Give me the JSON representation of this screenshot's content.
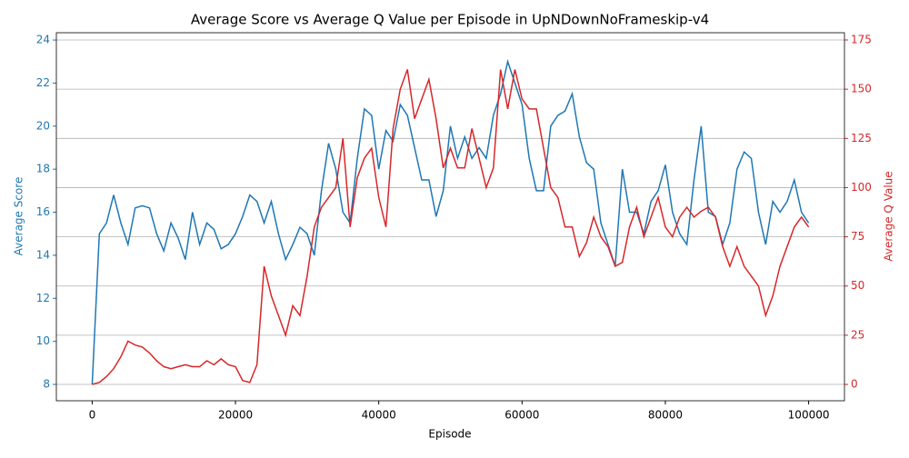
{
  "chart_data": {
    "type": "line",
    "title": "Average Score vs Average Q Value per Episode in UpNDownNoFrameskip-v4",
    "xlabel": "Episode",
    "ylabel": "Average Score",
    "y2label": "Average Q Value",
    "x": [
      0,
      1000,
      2000,
      3000,
      4000,
      5000,
      6000,
      7000,
      8000,
      9000,
      10000,
      11000,
      12000,
      13000,
      14000,
      15000,
      16000,
      17000,
      18000,
      19000,
      20000,
      21000,
      22000,
      23000,
      24000,
      25000,
      26000,
      27000,
      28000,
      29000,
      30000,
      31000,
      32000,
      33000,
      34000,
      35000,
      36000,
      37000,
      38000,
      39000,
      40000,
      41000,
      42000,
      43000,
      44000,
      45000,
      46000,
      47000,
      48000,
      49000,
      50000,
      51000,
      52000,
      53000,
      54000,
      55000,
      56000,
      57000,
      58000,
      59000,
      60000,
      61000,
      62000,
      63000,
      64000,
      65000,
      66000,
      67000,
      68000,
      69000,
      70000,
      71000,
      72000,
      73000,
      74000,
      75000,
      76000,
      77000,
      78000,
      79000,
      80000,
      81000,
      82000,
      83000,
      84000,
      85000,
      86000,
      87000,
      88000,
      89000,
      90000,
      91000,
      92000,
      93000,
      94000,
      95000,
      96000,
      97000,
      98000,
      99000,
      100000
    ],
    "series": [
      {
        "name": "Average Score",
        "color": "#1f77b4",
        "axis": "y",
        "values": [
          8,
          15,
          15.5,
          16.8,
          15.5,
          14.5,
          16.2,
          16.3,
          16.2,
          15,
          14.2,
          15.5,
          14.8,
          13.8,
          16,
          14.5,
          15.5,
          15.2,
          14.3,
          14.5,
          15,
          15.8,
          16.8,
          16.5,
          15.5,
          16.5,
          15,
          13.8,
          14.5,
          15.3,
          15,
          14,
          17,
          19.2,
          18,
          16,
          15.5,
          18.5,
          20.8,
          20.5,
          18,
          19.8,
          19.3,
          21,
          20.5,
          19,
          17.5,
          17.5,
          15.8,
          17,
          20,
          18.5,
          19.5,
          18.5,
          19,
          18.5,
          20.5,
          21.5,
          23,
          22,
          21,
          18.5,
          17,
          17,
          20,
          20.5,
          20.7,
          21.5,
          19.5,
          18.3,
          18,
          15.5,
          14.5,
          13.5,
          18,
          16,
          16,
          15,
          16.5,
          17,
          18.2,
          16,
          15,
          14.5,
          17.5,
          20,
          16,
          15.8,
          14.5,
          15.5,
          18,
          18.8,
          18.5,
          16,
          14.5,
          16.5,
          16,
          16.5,
          17.5,
          16,
          15.5
        ]
      },
      {
        "name": "Average Q Value",
        "color": "#d62728",
        "axis": "y2",
        "values": [
          0,
          1,
          4,
          8,
          14,
          22,
          20,
          19,
          16,
          12,
          9,
          8,
          9,
          10,
          9,
          9,
          12,
          10,
          13,
          10,
          9,
          2,
          1,
          10,
          60,
          45,
          35,
          25,
          40,
          35,
          55,
          80,
          90,
          95,
          100,
          125,
          80,
          105,
          115,
          120,
          95,
          80,
          130,
          150,
          160,
          135,
          145,
          155,
          135,
          110,
          120,
          110,
          110,
          130,
          115,
          100,
          110,
          160,
          140,
          160,
          145,
          140,
          140,
          120,
          100,
          95,
          80,
          80,
          65,
          72,
          85,
          75,
          70,
          60,
          62,
          80,
          90,
          75,
          85,
          95,
          80,
          75,
          85,
          90,
          85,
          88,
          90,
          85,
          70,
          60,
          70,
          60,
          55,
          50,
          35,
          45,
          60,
          70,
          80,
          85,
          80
        ]
      }
    ],
    "xlim": [
      -5000,
      105000
    ],
    "xticks": [
      0,
      20000,
      40000,
      60000,
      80000,
      100000
    ],
    "ylim": [
      7.24,
      24.34
    ],
    "yticks": [
      8,
      10,
      12,
      14,
      16,
      18,
      20,
      22,
      24
    ],
    "y2lim": [
      -8.3,
      178.7
    ],
    "y2ticks": [
      0,
      25,
      50,
      75,
      100,
      125,
      150,
      175
    ],
    "grid": "y2"
  }
}
